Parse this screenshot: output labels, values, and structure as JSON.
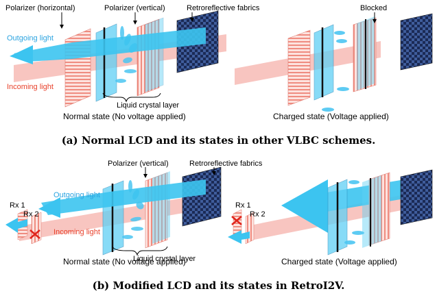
{
  "panel_a": {
    "normal": {
      "polarizer_h": "Polarizer (horizontal)",
      "polarizer_v": "Polarizer (vertical)",
      "retro": "Retroreflective fabrics",
      "outgoing": "Outgoing light",
      "incoming": "Incoming light",
      "lc_layer": "Liquid crystal layer",
      "state": "Normal state (No voltage applied)"
    },
    "charged": {
      "blocked": "Blocked",
      "state": "Charged state (Voltage applied)"
    },
    "caption": "(a) Normal LCD and its states in other VLBC schemes."
  },
  "panel_b": {
    "normal": {
      "polarizer_v": "Polarizer (vertical)",
      "retro": "Retroreflective fabrics",
      "outgoing": "Outgoing light",
      "incoming": "Incoming light",
      "rx1": "Rx 1",
      "rx2": "Rx 2",
      "lc_layer": "Liquid crystal layer",
      "state": "Normal state (No voltage applied)"
    },
    "charged": {
      "rx1": "Rx 1",
      "rx2": "Rx 2",
      "state": "Charged state (Voltage applied)"
    },
    "caption": "(b) Modified LCD and its states in RetroI2V."
  },
  "colors": {
    "light_blue": "#3cc4f0",
    "light_red": "#f2968c",
    "label_blue": "#2aa3e0",
    "label_red": "#e8402a",
    "fabric_dark": "#1b2a55",
    "fabric_light": "#3f5d9c",
    "block_mark": "#e0241b"
  }
}
